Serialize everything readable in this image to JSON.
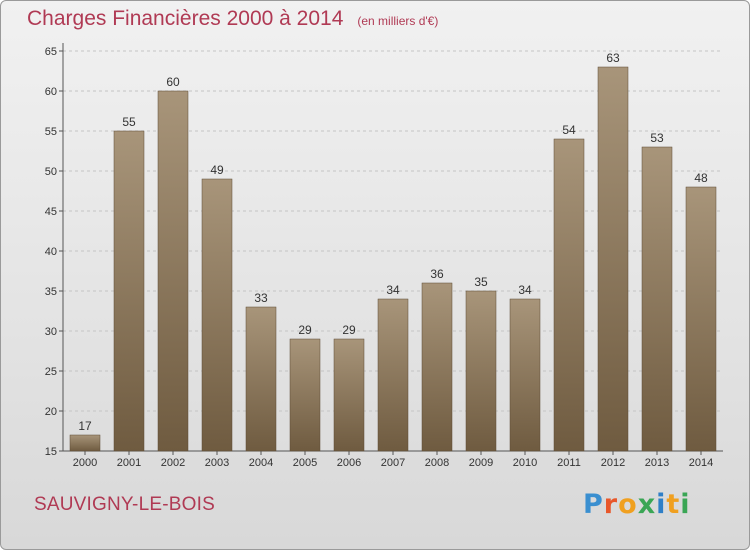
{
  "chart_data": {
    "type": "bar",
    "title": "Charges Financières 2000 à 2014",
    "subtitle": "(en milliers d'€)",
    "categories": [
      "2000",
      "2001",
      "2002",
      "2003",
      "2004",
      "2005",
      "2006",
      "2007",
      "2008",
      "2009",
      "2010",
      "2011",
      "2012",
      "2013",
      "2014"
    ],
    "values": [
      17,
      55,
      60,
      49,
      33,
      29,
      29,
      34,
      36,
      35,
      34,
      54,
      63,
      53,
      48
    ],
    "ylim": [
      15,
      65
    ],
    "yticks": [
      15,
      20,
      25,
      30,
      35,
      40,
      45,
      50,
      55,
      60,
      65
    ],
    "grid": true,
    "bar_color": "#8a7558"
  },
  "place": "SAUVIGNY-LE-BOIS",
  "logo": {
    "letters": [
      "P",
      "r",
      "o",
      "x",
      "i",
      "t",
      "i"
    ],
    "colors": [
      "#3a8fd0",
      "#e8572a",
      "#f0a020",
      "#3aa655",
      "#2f7fc7",
      "#f0a020",
      "#3aa655"
    ]
  }
}
